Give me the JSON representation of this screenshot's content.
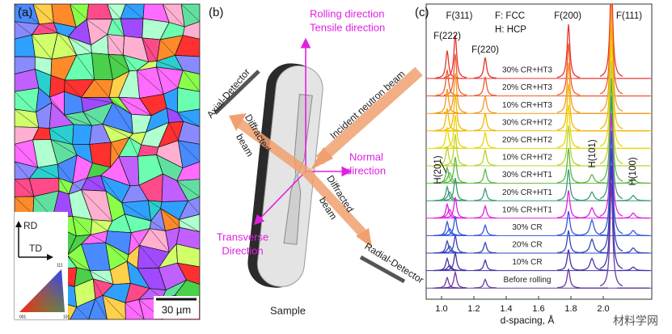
{
  "panel_a": {
    "label": "(a)",
    "rd": "RD",
    "td": "TD",
    "scale": "30 µm",
    "ipf": [
      "001",
      "101",
      "111"
    ]
  },
  "panel_b": {
    "label": "(b)",
    "rolling": "Rolling direction",
    "tensile": "Tensile direction",
    "normal": [
      "Normal",
      "direction"
    ],
    "transverse": [
      "Transverse",
      "Direction"
    ],
    "axial": "Axial-Detector",
    "radial": "Radial-Detector",
    "incident": "Incident neutron beam",
    "diffracted": [
      "Diffracted",
      "beam"
    ],
    "sample": "Sample"
  },
  "watermark": "材料学网",
  "chart_data": {
    "type": "line",
    "panel_label": "(c)",
    "x_label": "d-spacing, Å",
    "notes": [
      "F: FCC",
      "H: HCP"
    ],
    "xlim": [
      0.905,
      2.3
    ],
    "xticks": [
      {
        "value": 1,
        "label": "1.0"
      },
      1.2,
      1.4,
      1.6,
      1.8,
      {
        "value": 2,
        "label": "2.0"
      }
    ],
    "peaks": [
      {
        "label": "F(222)",
        "d": 1.035
      },
      {
        "label": "F(311)",
        "d": 1.085
      },
      {
        "label": "F(220)",
        "d": 1.27
      },
      {
        "label": "F(200)",
        "d": 1.785
      },
      {
        "label": "F(111)",
        "d": 2.05
      },
      {
        "label": "H(201)",
        "d": 1.05
      },
      {
        "label": "H(101)",
        "d": 1.93
      },
      {
        "label": "H(100)",
        "d": 2.185
      }
    ],
    "series": [
      {
        "name": "30% CR+HT3",
        "color": "#e8322b",
        "values": [
          1.6,
          2.5,
          1.2,
          3.1,
          6,
          0,
          0,
          0
        ]
      },
      {
        "name": "20% CR+HT3",
        "color": "#ef5a2a",
        "values": [
          1.5,
          2.4,
          1.1,
          3.0,
          6,
          0,
          0,
          0
        ]
      },
      {
        "name": "10% CR+HT3",
        "color": "#f39a20",
        "values": [
          1.4,
          2.3,
          1.0,
          2.9,
          6,
          0,
          0,
          0
        ]
      },
      {
        "name": "30% CR+HT2",
        "color": "#f2b800",
        "values": [
          1.3,
          2.1,
          1.0,
          2.7,
          6,
          0,
          0,
          0
        ]
      },
      {
        "name": "20% CR+HT2",
        "color": "#e8d800",
        "values": [
          1.2,
          1.9,
          0.9,
          2.5,
          6,
          0,
          0,
          0
        ]
      },
      {
        "name": "10% CR+HT2",
        "color": "#b8d430",
        "values": [
          1.1,
          1.8,
          0.9,
          2.3,
          6,
          0,
          0,
          0
        ]
      },
      {
        "name": "30% CR+HT1",
        "color": "#5cb844",
        "values": [
          0.9,
          1.5,
          0.8,
          2.0,
          6,
          0.6,
          0.5,
          0.3
        ]
      },
      {
        "name": "20% CR+HT1",
        "color": "#3c9a78",
        "values": [
          0.8,
          1.3,
          0.7,
          1.8,
          6,
          0.5,
          0.5,
          0.3
        ]
      },
      {
        "name": "10% CR+HT1",
        "color": "#e020e0",
        "values": [
          0.8,
          1.2,
          0.7,
          1.6,
          6,
          0.5,
          0.6,
          0.3
        ]
      },
      {
        "name": "30% CR",
        "color": "#3355dd",
        "values": [
          0.8,
          1.1,
          0.6,
          1.4,
          6,
          0.4,
          0.9,
          0.3
        ]
      },
      {
        "name": "20% CR",
        "color": "#3344bb",
        "values": [
          0.7,
          1.0,
          0.6,
          1.3,
          6,
          0.4,
          0.8,
          0.3
        ]
      },
      {
        "name": "10% CR",
        "color": "#4433aa",
        "values": [
          0.7,
          1.0,
          0.6,
          1.2,
          6,
          0.3,
          0.7,
          0.2
        ]
      },
      {
        "name": "Before rolling",
        "color": "#6a3aa0",
        "values": [
          0.6,
          0.9,
          0.5,
          1.1,
          6,
          0,
          0,
          0
        ]
      }
    ]
  }
}
